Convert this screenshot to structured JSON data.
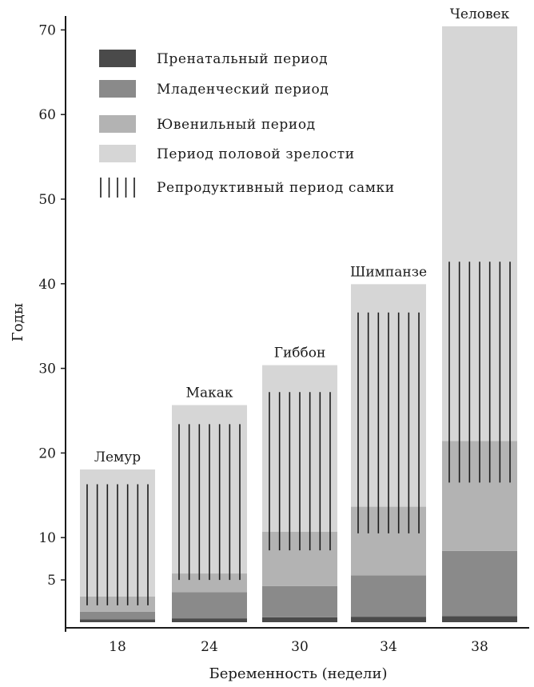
{
  "chart_data": {
    "type": "bar",
    "stacked": true,
    "xlabel": "Беременность (недели)",
    "ylabel": "Годы",
    "ylim": [
      0,
      72
    ],
    "yticks": [
      5,
      10,
      20,
      30,
      40,
      50,
      60,
      70
    ],
    "grid": false,
    "legend_position": "top-left",
    "categories": [
      "18",
      "24",
      "30",
      "34",
      "38"
    ],
    "species": [
      "Лемур",
      "Макак",
      "Гиббон",
      "Шимпанзе",
      "Человек"
    ],
    "series": [
      {
        "name": "Пренатальный период",
        "color": "#4a4a4a",
        "values": [
          0.35,
          0.46,
          0.58,
          0.65,
          0.73
        ]
      },
      {
        "name": "Младенческий период",
        "color": "#8a8a8a",
        "values": [
          0.9,
          3.1,
          3.7,
          4.9,
          7.7
        ]
      },
      {
        "name": "Ювенильный период",
        "color": "#b3b3b3",
        "values": [
          1.8,
          2.2,
          6.4,
          8.1,
          13.0
        ]
      },
      {
        "name": "Период половой зрелости",
        "color": "#d6d6d6",
        "values": [
          15.0,
          19.9,
          19.7,
          26.3,
          49.0
        ]
      }
    ],
    "reproductive_span": {
      "name": "Репродуктивный период самки",
      "ranges": [
        [
          2.0,
          16.3
        ],
        [
          5.0,
          23.4
        ],
        [
          8.5,
          27.2
        ],
        [
          10.5,
          36.6
        ],
        [
          16.5,
          42.6
        ]
      ],
      "line_counts": [
        7,
        7,
        7,
        7,
        7
      ]
    }
  }
}
